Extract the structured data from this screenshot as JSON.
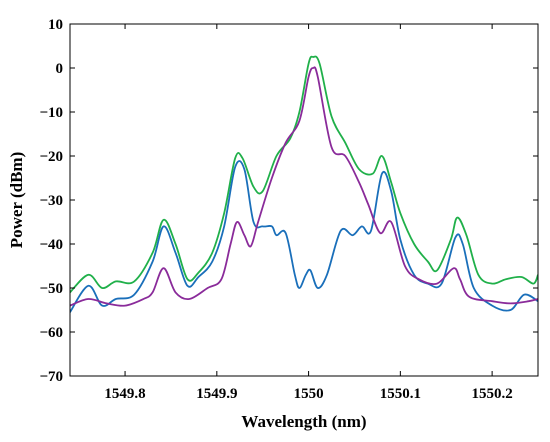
{
  "chart_data": {
    "type": "line",
    "title": "",
    "xlabel": "Wavelength (nm)",
    "ylabel": "Power (dBm)",
    "xlim": [
      1549.74,
      1550.25
    ],
    "ylim": [
      -70,
      10
    ],
    "x_ticks": [
      1549.8,
      1549.9,
      1550,
      1550.1,
      1550.2
    ],
    "x_tick_labels": [
      "1549.8",
      "1549.9",
      "1550",
      "1550.1",
      "1550.2"
    ],
    "y_ticks": [
      10,
      0,
      -10,
      -20,
      -30,
      -40,
      -50,
      -60,
      -70
    ],
    "y_tick_labels": [
      "10",
      "0",
      "−10",
      "−20",
      "−30",
      "−40",
      "−50",
      "−60",
      "−70"
    ],
    "grid": false,
    "legend": "none",
    "series": [
      {
        "color": "#20b04a",
        "points": [
          [
            1549.74,
            -51
          ],
          [
            1549.76,
            -47
          ],
          [
            1549.775,
            -50
          ],
          [
            1549.79,
            -48.5
          ],
          [
            1549.81,
            -48.5
          ],
          [
            1549.83,
            -42
          ],
          [
            1549.842,
            -34.5
          ],
          [
            1549.855,
            -40
          ],
          [
            1549.868,
            -48
          ],
          [
            1549.88,
            -46.5
          ],
          [
            1549.895,
            -42
          ],
          [
            1549.908,
            -33
          ],
          [
            1549.92,
            -20.5
          ],
          [
            1549.928,
            -20.5
          ],
          [
            1549.94,
            -27
          ],
          [
            1549.95,
            -28
          ],
          [
            1549.965,
            -20
          ],
          [
            1549.98,
            -16
          ],
          [
            1549.99,
            -10
          ],
          [
            1550.0,
            1
          ],
          [
            1550.005,
            2.5
          ],
          [
            1550.012,
            1
          ],
          [
            1550.025,
            -11
          ],
          [
            1550.04,
            -17
          ],
          [
            1550.055,
            -23
          ],
          [
            1550.07,
            -24
          ],
          [
            1550.08,
            -20
          ],
          [
            1550.09,
            -26
          ],
          [
            1550.1,
            -33
          ],
          [
            1550.115,
            -40
          ],
          [
            1550.13,
            -44
          ],
          [
            1550.14,
            -46
          ],
          [
            1550.155,
            -39
          ],
          [
            1550.162,
            -34
          ],
          [
            1550.172,
            -38
          ],
          [
            1550.185,
            -47
          ],
          [
            1550.2,
            -49
          ],
          [
            1550.215,
            -48
          ],
          [
            1550.232,
            -47.5
          ],
          [
            1550.245,
            -49
          ],
          [
            1550.25,
            -47
          ]
        ]
      },
      {
        "color": "#1a6fba",
        "points": [
          [
            1549.74,
            -55.5
          ],
          [
            1549.76,
            -49.5
          ],
          [
            1549.775,
            -54
          ],
          [
            1549.79,
            -52.5
          ],
          [
            1549.81,
            -51.5
          ],
          [
            1549.83,
            -44
          ],
          [
            1549.842,
            -36
          ],
          [
            1549.855,
            -42
          ],
          [
            1549.868,
            -49.5
          ],
          [
            1549.88,
            -47.5
          ],
          [
            1549.895,
            -44
          ],
          [
            1549.908,
            -36
          ],
          [
            1549.92,
            -22.5
          ],
          [
            1549.93,
            -23
          ],
          [
            1549.94,
            -35
          ],
          [
            1549.95,
            -36
          ],
          [
            1549.96,
            -36
          ],
          [
            1549.965,
            -38
          ],
          [
            1549.975,
            -37.5
          ],
          [
            1549.985,
            -47
          ],
          [
            1549.99,
            -50
          ],
          [
            1549.997,
            -47
          ],
          [
            1550.002,
            -46
          ],
          [
            1550.01,
            -50
          ],
          [
            1550.02,
            -47
          ],
          [
            1550.035,
            -37
          ],
          [
            1550.048,
            -38
          ],
          [
            1550.058,
            -36
          ],
          [
            1550.068,
            -37
          ],
          [
            1550.08,
            -24
          ],
          [
            1550.09,
            -28
          ],
          [
            1550.1,
            -39
          ],
          [
            1550.115,
            -47
          ],
          [
            1550.13,
            -49
          ],
          [
            1550.145,
            -49
          ],
          [
            1550.16,
            -38.5
          ],
          [
            1550.168,
            -40
          ],
          [
            1550.18,
            -50
          ],
          [
            1550.2,
            -54
          ],
          [
            1550.22,
            -55
          ],
          [
            1550.235,
            -51.5
          ],
          [
            1550.25,
            -53
          ]
        ]
      },
      {
        "color": "#8a2b9a",
        "points": [
          [
            1549.74,
            -54
          ],
          [
            1549.76,
            -52.5
          ],
          [
            1549.78,
            -53.5
          ],
          [
            1549.8,
            -54
          ],
          [
            1549.82,
            -52.5
          ],
          [
            1549.83,
            -51
          ],
          [
            1549.842,
            -45.5
          ],
          [
            1549.855,
            -51
          ],
          [
            1549.87,
            -52.5
          ],
          [
            1549.89,
            -50
          ],
          [
            1549.905,
            -48
          ],
          [
            1549.915,
            -40
          ],
          [
            1549.922,
            -35
          ],
          [
            1549.93,
            -38
          ],
          [
            1549.937,
            -40.5
          ],
          [
            1549.945,
            -35
          ],
          [
            1549.96,
            -25
          ],
          [
            1549.975,
            -17
          ],
          [
            1549.99,
            -12
          ],
          [
            1550.0,
            -2
          ],
          [
            1550.005,
            0
          ],
          [
            1550.01,
            -2
          ],
          [
            1550.025,
            -18
          ],
          [
            1550.04,
            -20
          ],
          [
            1550.055,
            -26
          ],
          [
            1550.065,
            -31
          ],
          [
            1550.078,
            -37.5
          ],
          [
            1550.09,
            -35
          ],
          [
            1550.105,
            -45
          ],
          [
            1550.12,
            -48
          ],
          [
            1550.14,
            -49
          ],
          [
            1550.158,
            -45.5
          ],
          [
            1550.165,
            -48
          ],
          [
            1550.175,
            -52
          ],
          [
            1550.2,
            -53
          ],
          [
            1550.22,
            -53.5
          ],
          [
            1550.24,
            -53
          ],
          [
            1550.25,
            -52.5
          ]
        ]
      }
    ]
  }
}
